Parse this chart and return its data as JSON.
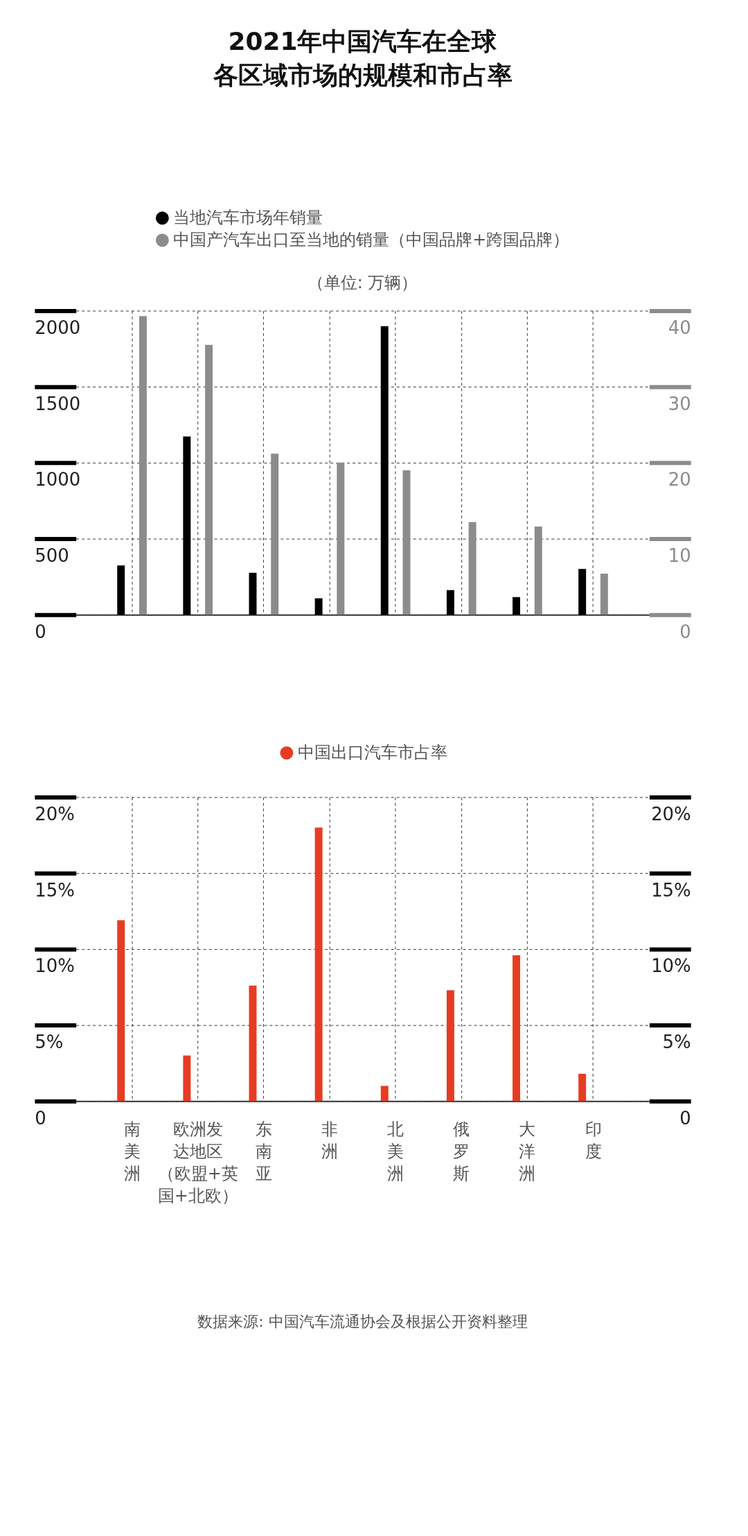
{
  "chart_data": [
    {
      "type": "bar",
      "title": "2021年中国汽车在全球各区域市场的规模和市占率",
      "categories": [
        "南美洲",
        "欧洲发达地区（欧盟+英国+北欧）",
        "东南亚",
        "非洲",
        "北美洲",
        "俄罗斯",
        "大洋洲",
        "印度"
      ],
      "series": [
        {
          "name": "当地汽车市场年销量",
          "color": "#000000",
          "values": [
            324,
            1173,
            276,
            108,
            1898,
            162,
            116,
            301
          ]
        },
        {
          "name": "中国产汽车出口至当地的销量（中国品牌+跨国品牌）",
          "color": "#8c8c8c",
          "axis": "y2",
          "values": [
            39.3,
            35.5,
            21.2,
            20.0,
            19.0,
            12.2,
            11.6,
            5.4
          ]
        }
      ],
      "ylim": [
        0,
        2000
      ],
      "yticks": [
        0,
        500,
        1000,
        1500,
        2000
      ],
      "y2lim": [
        0,
        40
      ],
      "y2ticks": [
        0,
        10,
        20,
        30,
        40
      ],
      "annotations": [
        "（单位: 万辆）"
      ],
      "tick_labels": "y",
      "grid": true,
      "legend": "top"
    },
    {
      "type": "bar",
      "categories": [
        "南美洲",
        "欧洲发达地区（欧盟+英国+北欧）",
        "东南亚",
        "非洲",
        "北美洲",
        "俄罗斯",
        "大洋洲",
        "印度"
      ],
      "series": [
        {
          "name": "中国出口汽车市占率",
          "color": "#e63c23",
          "values": [
            11.9,
            3.0,
            7.6,
            18.0,
            1.0,
            7.3,
            9.6,
            1.8
          ]
        }
      ],
      "ylim": [
        0,
        20
      ],
      "yticks": [
        0,
        {
          "value": 5,
          "label": "5%"
        },
        {
          "value": 10,
          "label": "10%"
        },
        {
          "value": 15,
          "label": "15%"
        },
        {
          "value": 20,
          "label": "20%"
        }
      ],
      "y2lim": [
        0,
        20
      ],
      "y2ticks": [
        0,
        {
          "value": 5,
          "label": "5%"
        },
        {
          "value": 10,
          "label": "10%"
        },
        {
          "value": 15,
          "label": "15%"
        },
        {
          "value": 20,
          "label": "20%"
        }
      ],
      "annotations": [
        "数据来源: 中国汽车流通协会及根据公开资料整理"
      ],
      "grid": true,
      "legend": "top"
    }
  ]
}
